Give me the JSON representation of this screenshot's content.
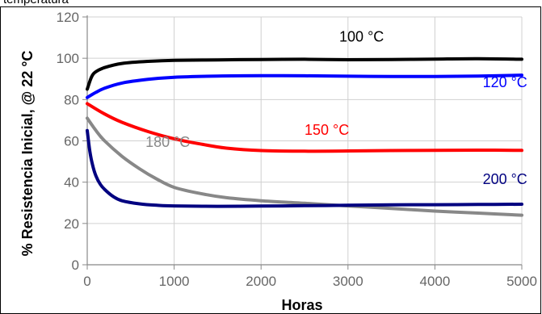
{
  "chart_data": {
    "type": "line",
    "title_fragment": "temperatura",
    "xlabel": "Horas",
    "ylabel": "% Resistencia Inicial, @ 22 °C",
    "xlim": [
      0,
      5000
    ],
    "ylim": [
      0,
      120
    ],
    "x_ticks": [
      0,
      1000,
      2000,
      3000,
      4000,
      5000
    ],
    "y_ticks": [
      0,
      20,
      40,
      60,
      80,
      100,
      120
    ],
    "grid": true,
    "legend": "inline labels",
    "series": [
      {
        "name": "100 °C",
        "color": "#000000",
        "x": [
          0,
          50,
          100,
          200,
          400,
          700,
          1000,
          1500,
          2000,
          2500,
          3000,
          3500,
          4000,
          4500,
          5000
        ],
        "y": [
          85,
          91,
          93.5,
          95.5,
          97.5,
          98.5,
          99,
          99.2,
          99.4,
          99.5,
          99.3,
          99.4,
          99.6,
          99.8,
          99.5
        ]
      },
      {
        "name": "120 °C",
        "color": "#0000ff",
        "x": [
          0,
          100,
          200,
          400,
          700,
          1000,
          1500,
          2000,
          2500,
          3000,
          3500,
          4000,
          4500,
          5000
        ],
        "y": [
          81,
          83.5,
          85.5,
          88,
          89.8,
          90.8,
          91.4,
          91.6,
          91.5,
          91.3,
          91.2,
          91.2,
          91.4,
          91.8
        ]
      },
      {
        "name": "150 °C",
        "color": "#ff0000",
        "x": [
          0,
          200,
          400,
          700,
          1000,
          1300,
          1600,
          2000,
          2500,
          3000,
          3500,
          4000,
          4500,
          5000
        ],
        "y": [
          78,
          73,
          69,
          64.5,
          61,
          58.5,
          56.5,
          55.3,
          55,
          55.1,
          55.3,
          55.4,
          55.5,
          55.4
        ]
      },
      {
        "name": "180 °C",
        "color": "#888888",
        "x": [
          0,
          100,
          200,
          400,
          600,
          800,
          1000,
          1300,
          1600,
          2000,
          2500,
          3000,
          3500,
          4000,
          4500,
          5000
        ],
        "y": [
          71,
          65,
          60,
          52.5,
          46.5,
          41.5,
          37.5,
          34.5,
          32.5,
          31,
          29.8,
          28.5,
          27.3,
          26,
          25,
          24
        ]
      },
      {
        "name": "200 °C",
        "color": "#000080",
        "x": [
          0,
          30,
          60,
          100,
          150,
          200,
          300,
          400,
          600,
          800,
          1000,
          1500,
          2000,
          2500,
          3000,
          3500,
          4000,
          4500,
          5000
        ],
        "y": [
          65,
          55,
          48.5,
          43,
          39,
          36.5,
          33,
          31,
          29.5,
          28.8,
          28.5,
          28.3,
          28.4,
          28.6,
          28.8,
          29,
          29.1,
          29.2,
          29.3
        ]
      }
    ],
    "annotations": [
      {
        "text": "100 °C",
        "x": 2900,
        "y": 108,
        "color": "#000000"
      },
      {
        "text": "120 °C",
        "x": 4550,
        "y": 86,
        "color": "#0000ff"
      },
      {
        "text": "150 °C",
        "x": 2500,
        "y": 63,
        "color": "#ff0000"
      },
      {
        "text": "180 °C",
        "x": 670,
        "y": 57,
        "color": "#888888"
      },
      {
        "text": "200 °C",
        "x": 4550,
        "y": 39,
        "color": "#000080"
      }
    ],
    "styles": {
      "axis_color": "#888888",
      "grid_color": "#d0d0d0",
      "frame_color": "#000000",
      "tick_label_color": "#666666"
    }
  }
}
